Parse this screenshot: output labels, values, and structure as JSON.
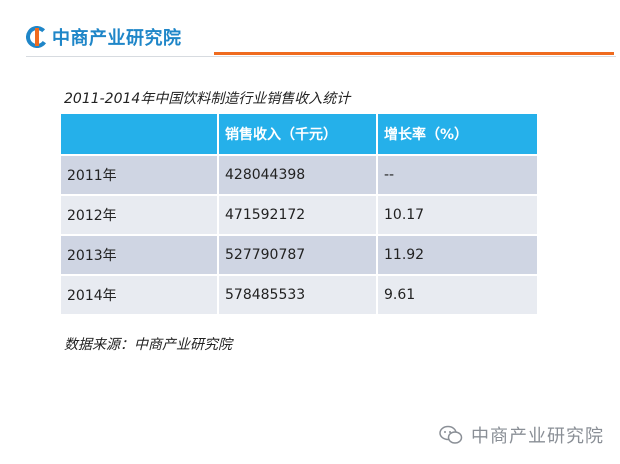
{
  "header": {
    "logo_text": "中商产业研究院",
    "accent_color": "#ef6b1f",
    "brand_color": "#1f86c8"
  },
  "title": "2011-2014年中国饮料制造行业销售收入统计",
  "table": {
    "columns": [
      "",
      "销售收入（千元）",
      "增长率（%）"
    ],
    "rows": [
      {
        "year": "2011年",
        "revenue": "428044398",
        "growth": "--"
      },
      {
        "year": "2012年",
        "revenue": "471592172",
        "growth": "10.17"
      },
      {
        "year": "2013年",
        "revenue": "527790787",
        "growth": "11.92"
      },
      {
        "year": "2014年",
        "revenue": "578485533",
        "growth": "9.61"
      }
    ]
  },
  "source": "数据来源：中商产业研究院",
  "watermark": {
    "text": "中商产业研究院",
    "icon": "wechat-icon"
  }
}
